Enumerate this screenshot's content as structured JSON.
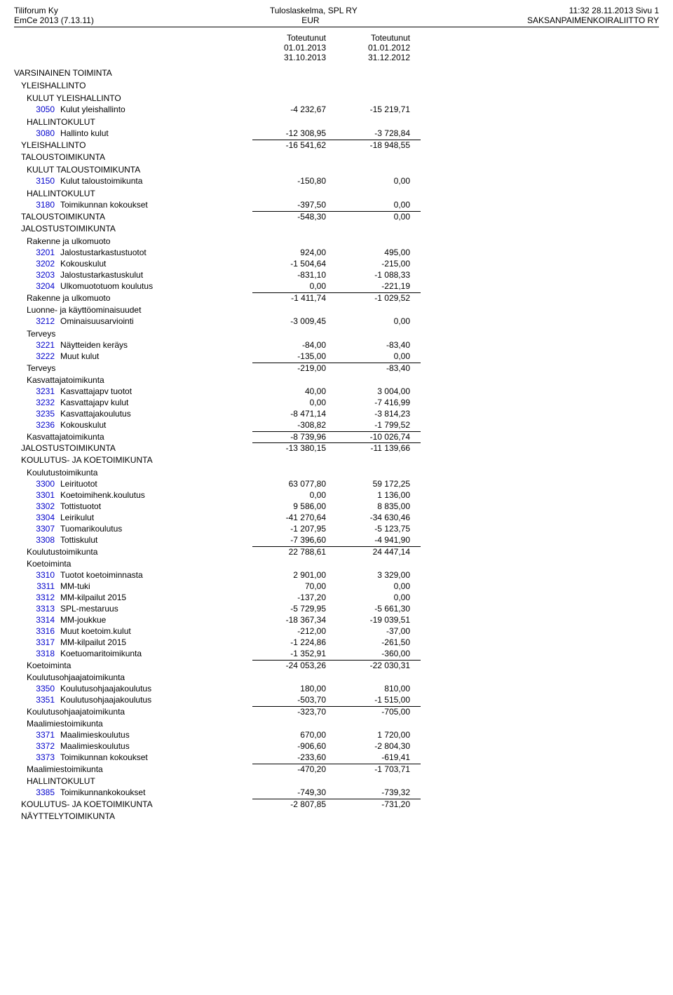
{
  "header": {
    "left1": "Tiliforum Ky",
    "left2": "EmCe 2013 (7.13.11)",
    "center1": "Tuloslaskelma, SPL RY",
    "center2": "EUR",
    "right1": "11:32 28.11.2013 Sivu 1",
    "right2": "SAKSANPAIMENKOIRALIITTO RY"
  },
  "periods": {
    "col1": {
      "label": "Toteutunut",
      "from": "01.01.2013",
      "to": "31.10.2013"
    },
    "col2": {
      "label": "Toteutunut",
      "from": "01.01.2012",
      "to": "31.12.2012"
    }
  },
  "rows": [
    {
      "type": "section",
      "indent": 0,
      "name": "VARSINAINEN TOIMINTA"
    },
    {
      "type": "section",
      "indent": 1,
      "name": "YLEISHALLINTO"
    },
    {
      "type": "section",
      "indent": 2,
      "name": "KULUT YLEISHALLINTO"
    },
    {
      "type": "item",
      "code": "3050",
      "name": "Kulut yleishallinto",
      "v1": "-4 232,67",
      "v2": "-15 219,71"
    },
    {
      "type": "section",
      "indent": 2,
      "name": "HALLINTOKULUT"
    },
    {
      "type": "item",
      "code": "3080",
      "name": "Hallinto kulut",
      "v1": "-12 308,95",
      "v2": "-3 728,84"
    },
    {
      "type": "subtotal",
      "indent": 1,
      "name": "YLEISHALLINTO",
      "v1": "-16 541,62",
      "v2": "-18 948,55"
    },
    {
      "type": "section",
      "indent": 1,
      "name": "TALOUSTOIMIKUNTA"
    },
    {
      "type": "section",
      "indent": 2,
      "name": "KULUT TALOUSTOIMIKUNTA"
    },
    {
      "type": "item",
      "code": "3150",
      "name": "Kulut taloustoimikunta",
      "v1": "-150,80",
      "v2": "0,00"
    },
    {
      "type": "section",
      "indent": 2,
      "name": "HALLINTOKULUT"
    },
    {
      "type": "item",
      "code": "3180",
      "name": "Toimikunnan kokoukset",
      "v1": "-397,50",
      "v2": "0,00"
    },
    {
      "type": "subtotal",
      "indent": 1,
      "name": "TALOUSTOIMIKUNTA",
      "v1": "-548,30",
      "v2": "0,00"
    },
    {
      "type": "section",
      "indent": 1,
      "name": "JALOSTUSTOIMIKUNTA"
    },
    {
      "type": "section",
      "indent": 2,
      "name": "Rakenne ja ulkomuoto"
    },
    {
      "type": "item",
      "code": "3201",
      "name": "Jalostustarkastustuotot",
      "v1": "924,00",
      "v2": "495,00"
    },
    {
      "type": "item",
      "code": "3202",
      "name": "Kokouskulut",
      "v1": "-1 504,64",
      "v2": "-215,00"
    },
    {
      "type": "item",
      "code": "3203",
      "name": "Jalostustarkastuskulut",
      "v1": "-831,10",
      "v2": "-1 088,33"
    },
    {
      "type": "item",
      "code": "3204",
      "name": "Ulkomuototuom koulutus",
      "v1": "0,00",
      "v2": "-221,19"
    },
    {
      "type": "subtotal",
      "indent": 2,
      "name": "Rakenne ja ulkomuoto",
      "v1": "-1 411,74",
      "v2": "-1 029,52"
    },
    {
      "type": "section",
      "indent": 2,
      "name": "Luonne- ja käyttöominaisuudet"
    },
    {
      "type": "item",
      "code": "3212",
      "name": "Ominaisuusarviointi",
      "v1": "-3 009,45",
      "v2": "0,00"
    },
    {
      "type": "section",
      "indent": 2,
      "name": "Terveys"
    },
    {
      "type": "item",
      "code": "3221",
      "name": "Näytteiden keräys",
      "v1": "-84,00",
      "v2": "-83,40"
    },
    {
      "type": "item",
      "code": "3222",
      "name": "Muut kulut",
      "v1": "-135,00",
      "v2": "0,00"
    },
    {
      "type": "subtotal",
      "indent": 2,
      "name": "Terveys",
      "v1": "-219,00",
      "v2": "-83,40"
    },
    {
      "type": "section",
      "indent": 2,
      "name": "Kasvattajatoimikunta"
    },
    {
      "type": "item",
      "code": "3231",
      "name": "Kasvattajapv tuotot",
      "v1": "40,00",
      "v2": "3 004,00"
    },
    {
      "type": "item",
      "code": "3232",
      "name": "Kasvattajapv kulut",
      "v1": "0,00",
      "v2": "-7 416,99"
    },
    {
      "type": "item",
      "code": "3235",
      "name": "Kasvattajakoulutus",
      "v1": "-8 471,14",
      "v2": "-3 814,23"
    },
    {
      "type": "item",
      "code": "3236",
      "name": "Kokouskulut",
      "v1": "-308,82",
      "v2": "-1 799,52"
    },
    {
      "type": "subtotal",
      "indent": 2,
      "name": "Kasvattajatoimikunta",
      "v1": "-8 739,96",
      "v2": "-10 026,74"
    },
    {
      "type": "subtotal",
      "indent": 1,
      "name": "JALOSTUSTOIMIKUNTA",
      "v1": "-13 380,15",
      "v2": "-11 139,66"
    },
    {
      "type": "section",
      "indent": 1,
      "name": "KOULUTUS- JA KOETOIMIKUNTA"
    },
    {
      "type": "section",
      "indent": 2,
      "name": "Koulutustoimikunta"
    },
    {
      "type": "item",
      "code": "3300",
      "name": "Leirituotot",
      "v1": "63 077,80",
      "v2": "59 172,25"
    },
    {
      "type": "item",
      "code": "3301",
      "name": "Koetoimihenk.koulutus",
      "v1": "0,00",
      "v2": "1 136,00"
    },
    {
      "type": "item",
      "code": "3302",
      "name": "Tottistuotot",
      "v1": "9 586,00",
      "v2": "8 835,00"
    },
    {
      "type": "item",
      "code": "3304",
      "name": "Leirikulut",
      "v1": "-41 270,64",
      "v2": "-34 630,46"
    },
    {
      "type": "item",
      "code": "3307",
      "name": "Tuomarikoulutus",
      "v1": "-1 207,95",
      "v2": "-5 123,75"
    },
    {
      "type": "item",
      "code": "3308",
      "name": "Tottiskulut",
      "v1": "-7 396,60",
      "v2": "-4 941,90"
    },
    {
      "type": "subtotal",
      "indent": 2,
      "name": "Koulutustoimikunta",
      "v1": "22 788,61",
      "v2": "24 447,14"
    },
    {
      "type": "section",
      "indent": 2,
      "name": "Koetoiminta"
    },
    {
      "type": "item",
      "code": "3310",
      "name": "Tuotot koetoiminnasta",
      "v1": "2 901,00",
      "v2": "3 329,00"
    },
    {
      "type": "item",
      "code": "3311",
      "name": "MM-tuki",
      "v1": "70,00",
      "v2": "0,00"
    },
    {
      "type": "item",
      "code": "3312",
      "name": "MM-kilpailut 2015",
      "v1": "-137,20",
      "v2": "0,00"
    },
    {
      "type": "item",
      "code": "3313",
      "name": "SPL-mestaruus",
      "v1": "-5 729,95",
      "v2": "-5 661,30"
    },
    {
      "type": "item",
      "code": "3314",
      "name": "MM-joukkue",
      "v1": "-18 367,34",
      "v2": "-19 039,51"
    },
    {
      "type": "item",
      "code": "3316",
      "name": "Muut koetoim.kulut",
      "v1": "-212,00",
      "v2": "-37,00"
    },
    {
      "type": "item",
      "code": "3317",
      "name": "MM-kilpailut 2015",
      "v1": "-1 224,86",
      "v2": "-261,50"
    },
    {
      "type": "item",
      "code": "3318",
      "name": "Koetuomaritoimikunta",
      "v1": "-1 352,91",
      "v2": "-360,00"
    },
    {
      "type": "subtotal",
      "indent": 2,
      "name": "Koetoiminta",
      "v1": "-24 053,26",
      "v2": "-22 030,31"
    },
    {
      "type": "section",
      "indent": 2,
      "name": "Koulutusohjaajatoimikunta"
    },
    {
      "type": "item",
      "code": "3350",
      "name": "Koulutusohjaajakoulutus",
      "v1": "180,00",
      "v2": "810,00"
    },
    {
      "type": "item",
      "code": "3351",
      "name": "Koulutusohjaajakoulutus",
      "v1": "-503,70",
      "v2": "-1 515,00"
    },
    {
      "type": "subtotal",
      "indent": 2,
      "name": "Koulutusohjaajatoimikunta",
      "v1": "-323,70",
      "v2": "-705,00"
    },
    {
      "type": "section",
      "indent": 2,
      "name": "Maalimiestoimikunta"
    },
    {
      "type": "item",
      "code": "3371",
      "name": "Maalimieskoulutus",
      "v1": "670,00",
      "v2": "1 720,00"
    },
    {
      "type": "item",
      "code": "3372",
      "name": "Maalimieskoulutus",
      "v1": "-906,60",
      "v2": "-2 804,30"
    },
    {
      "type": "item",
      "code": "3373",
      "name": "Toimikunnan kokoukset",
      "v1": "-233,60",
      "v2": "-619,41"
    },
    {
      "type": "subtotal",
      "indent": 2,
      "name": "Maalimiestoimikunta",
      "v1": "-470,20",
      "v2": "-1 703,71"
    },
    {
      "type": "section",
      "indent": 2,
      "name": "HALLINTOKULUT"
    },
    {
      "type": "item",
      "code": "3385",
      "name": "Toimikunnankokoukset",
      "v1": "-749,30",
      "v2": "-739,32"
    },
    {
      "type": "subtotal",
      "indent": 1,
      "name": "KOULUTUS- JA KOETOIMIKUNTA",
      "v1": "-2 807,85",
      "v2": "-731,20"
    },
    {
      "type": "section",
      "indent": 1,
      "name": "NÄYTTELYTOIMIKUNTA"
    }
  ]
}
